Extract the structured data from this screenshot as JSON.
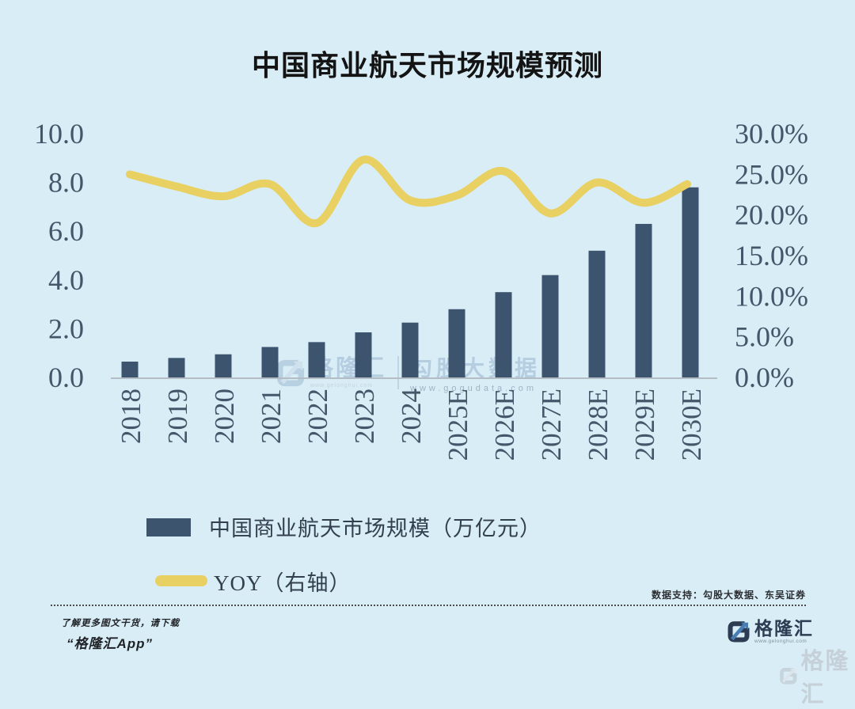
{
  "title": "中国商业航天市场规模预测",
  "chart_data": {
    "type": "bar",
    "title": "中国商业航天市场规模预测",
    "categories": [
      "2018",
      "2019",
      "2020",
      "2021",
      "2022",
      "2023",
      "2024",
      "2025E",
      "2026E",
      "2027E",
      "2028E",
      "2029E",
      "2030E"
    ],
    "series": [
      {
        "name": "中国商业航天市场规模（万亿元）",
        "type": "bar",
        "axis": "left",
        "values": [
          0.65,
          0.8,
          0.95,
          1.25,
          1.45,
          1.85,
          2.25,
          2.8,
          3.5,
          4.2,
          5.2,
          6.3,
          7.8
        ]
      },
      {
        "name": "YOY（右轴）",
        "type": "line",
        "axis": "right",
        "values": [
          25.0,
          23.5,
          22.3,
          23.8,
          19.0,
          26.8,
          21.8,
          22.4,
          25.4,
          20.2,
          24.0,
          21.5,
          23.8
        ]
      }
    ],
    "left_axis": {
      "range": [
        0,
        10
      ],
      "ticks": [
        "0.0",
        "2.0",
        "4.0",
        "6.0",
        "8.0",
        "10.0"
      ]
    },
    "right_axis": {
      "range": [
        0,
        30
      ],
      "ticks": [
        "0.0%",
        "5.0%",
        "10.0%",
        "15.0%",
        "20.0%",
        "25.0%",
        "30.0%"
      ]
    },
    "grid": false,
    "legend_position": "bottom-left",
    "colors": {
      "bar": "#3d546e",
      "line": "#e8d063",
      "background": "#d9edf6",
      "axis_text": "#44576a",
      "baseline": "#b3bdc3"
    }
  },
  "legend": {
    "bar_label": "中国商业航天市场规模（万亿元）",
    "line_label": "YOY（右轴）"
  },
  "watermark_center": {
    "brand": "格隆汇",
    "brand_url": "www.gelonghui.com",
    "partner": "勾股大数据",
    "partner_url": "www.gogudata.com"
  },
  "footer": {
    "data_support": "数据支持：勾股大数据、东吴证券",
    "promo_line1": "了解更多图文干货，请下载",
    "promo_line2": "“格隆汇App”",
    "brand_name": "格隆汇",
    "brand_url": "www.gelonghui.com",
    "corner_watermark": "格隆汇"
  }
}
